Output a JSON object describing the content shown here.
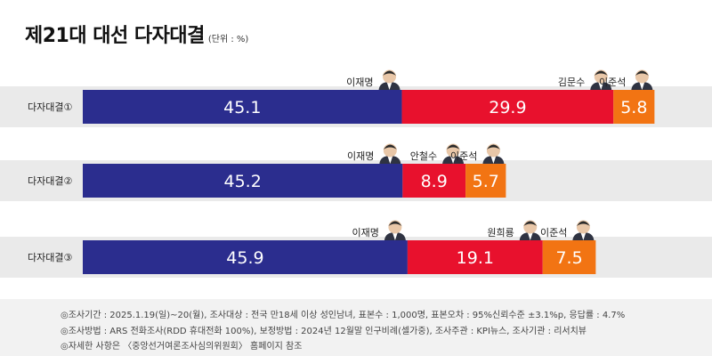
{
  "title": "제21대 대선 다자대결",
  "unit": "(단위 : %)",
  "colors": {
    "lee_jaemyung": "#2b2d8e",
    "red": "#e8112d",
    "orange": "#f27413",
    "band": "#eaeaea"
  },
  "chart_data": [
    {
      "type": "bar",
      "label": "다자대결①",
      "segments": [
        {
          "name": "이재명",
          "value": 45.1,
          "color": "#2b2d8e"
        },
        {
          "name": "김문수",
          "value": 29.9,
          "color": "#e8112d"
        },
        {
          "name": "이준석",
          "value": 5.8,
          "color": "#f27413"
        }
      ]
    },
    {
      "type": "bar",
      "label": "다자대결②",
      "segments": [
        {
          "name": "이재명",
          "value": 45.2,
          "color": "#2b2d8e"
        },
        {
          "name": "안철수",
          "value": 8.9,
          "color": "#e8112d"
        },
        {
          "name": "이준석",
          "value": 5.7,
          "color": "#f27413"
        }
      ]
    },
    {
      "type": "bar",
      "label": "다자대결③",
      "segments": [
        {
          "name": "이재명",
          "value": 45.9,
          "color": "#2b2d8e"
        },
        {
          "name": "원희룡",
          "value": 19.1,
          "color": "#e8112d"
        },
        {
          "name": "이준석",
          "value": 7.5,
          "color": "#f27413"
        }
      ]
    }
  ],
  "notes": [
    "◎조사기간 : 2025.1.19(일)~20(월), 조사대상 : 전국 만18세 이상 성인남녀, 표본수 : 1,000명, 표본오차 : 95%신뢰수준 ±3.1%p, 응답률 : 4.7%",
    "◎조사방법 : ARS 전화조사(RDD 휴대전화 100%), 보정방법 : 2024년 12월말 인구비례(셀가중), 조사주관 : KPI뉴스, 조사기관 : 리서치뷰",
    "◎자세한 사항은 〈중앙선거여론조사심의위원회〉 홈페이지 참조"
  ]
}
